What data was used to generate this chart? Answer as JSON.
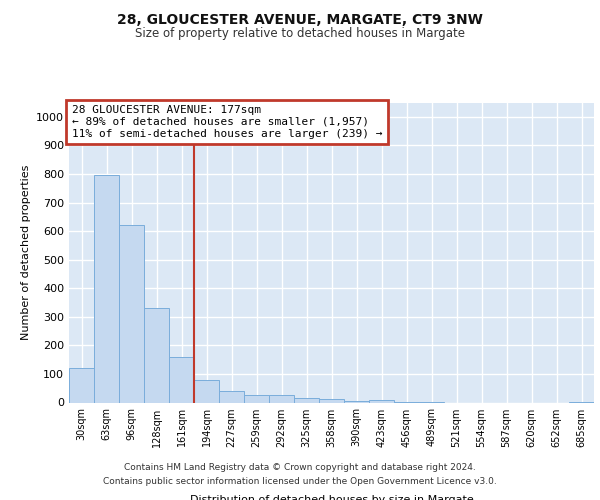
{
  "title": "28, GLOUCESTER AVENUE, MARGATE, CT9 3NW",
  "subtitle": "Size of property relative to detached houses in Margate",
  "xlabel": "Distribution of detached houses by size in Margate",
  "ylabel": "Number of detached properties",
  "bar_labels": [
    "30sqm",
    "63sqm",
    "96sqm",
    "128sqm",
    "161sqm",
    "194sqm",
    "227sqm",
    "259sqm",
    "292sqm",
    "325sqm",
    "358sqm",
    "390sqm",
    "423sqm",
    "456sqm",
    "489sqm",
    "521sqm",
    "554sqm",
    "587sqm",
    "620sqm",
    "652sqm",
    "685sqm"
  ],
  "bar_values": [
    122,
    795,
    620,
    330,
    160,
    80,
    40,
    25,
    25,
    15,
    12,
    5,
    8,
    2,
    2,
    0,
    0,
    0,
    0,
    0,
    3
  ],
  "bar_color": "#c5d9f0",
  "bar_edgecolor": "#7aaddb",
  "vline_color": "#c0392b",
  "annotation_text": "28 GLOUCESTER AVENUE: 177sqm\n← 89% of detached houses are smaller (1,957)\n11% of semi-detached houses are larger (239) →",
  "annotation_box_color": "#c0392b",
  "ylim": [
    0,
    1050
  ],
  "yticks": [
    0,
    100,
    200,
    300,
    400,
    500,
    600,
    700,
    800,
    900,
    1000
  ],
  "background_color": "#dce8f5",
  "grid_color": "#ffffff",
  "footer_line1": "Contains HM Land Registry data © Crown copyright and database right 2024.",
  "footer_line2": "Contains public sector information licensed under the Open Government Licence v3.0."
}
